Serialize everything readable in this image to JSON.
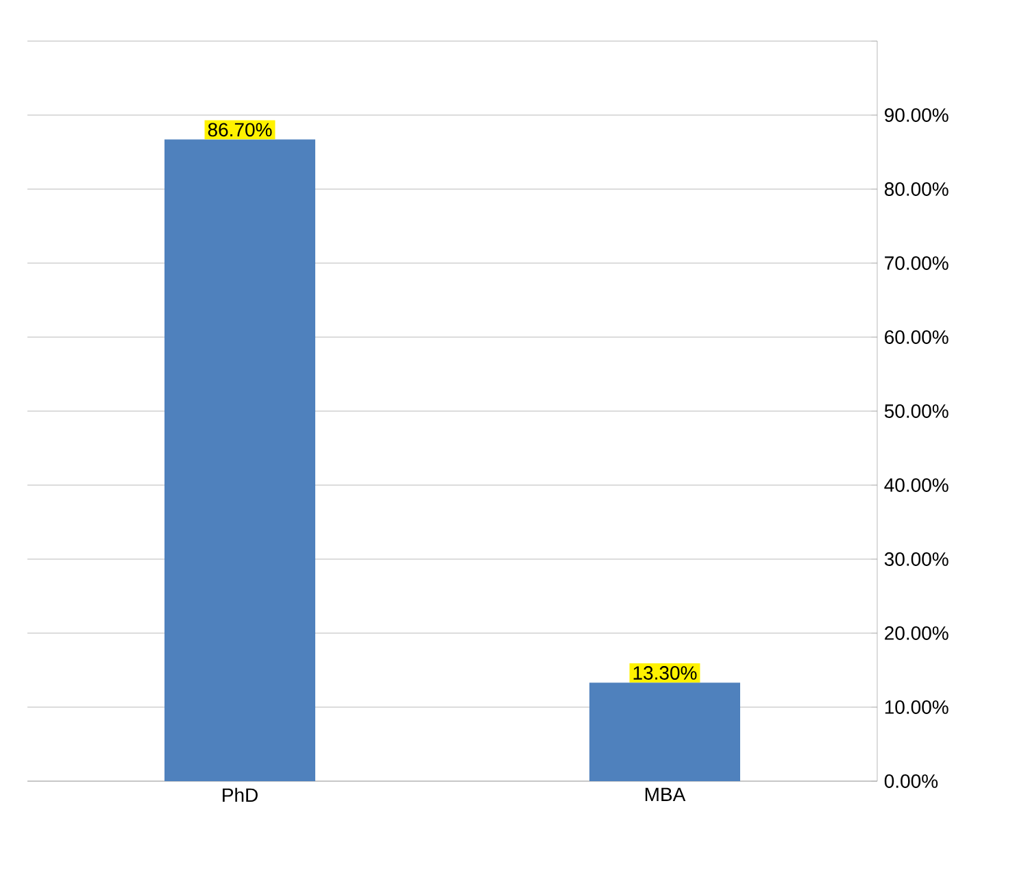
{
  "chart_data": {
    "type": "bar",
    "categories": [
      "PhD",
      "MBA"
    ],
    "values": [
      86.7,
      13.3
    ],
    "value_labels": [
      "86.70%",
      "13.30%"
    ],
    "color": "#4f81bd",
    "ylim": [
      0,
      100
    ],
    "yticks": [
      {
        "value": 0,
        "label": "0.00%"
      },
      {
        "value": 10,
        "label": "10.00%"
      },
      {
        "value": 20,
        "label": "20.00%"
      },
      {
        "value": 30,
        "label": "30.00%"
      },
      {
        "value": 40,
        "label": "40.00%"
      },
      {
        "value": 50,
        "label": "50.00%"
      },
      {
        "value": 60,
        "label": "60.00%"
      },
      {
        "value": 70,
        "label": "70.00%"
      },
      {
        "value": 80,
        "label": "80.00%"
      },
      {
        "value": 90,
        "label": "90.00%"
      },
      {
        "value": 100,
        "label": null
      }
    ],
    "grid": "y"
  }
}
